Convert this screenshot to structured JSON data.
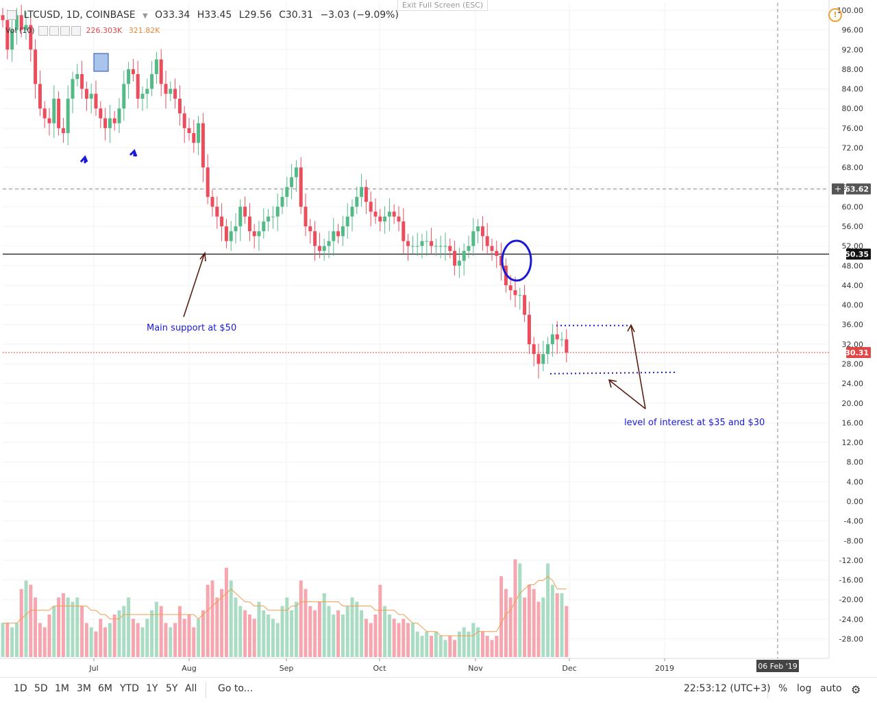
{
  "header": {
    "symbol": "LTCUSD, 1D, COINBASE",
    "open": "O33.34",
    "high": "H33.45",
    "low": "L29.56",
    "close": "C30.31",
    "change": "−3.03 (−9.09%)",
    "volume_label": "Vol (10)",
    "volume_value": "226.303K",
    "volume_ma": "321.82K"
  },
  "exit_fullscreen": "Exit Full Screen (ESC)",
  "warning_icon": "!",
  "annotations": {
    "main_support": "Main support at $50",
    "level_interest": "level of interest at $35 and $30"
  },
  "price_badges": {
    "top_line": "63.62",
    "support_line": "50.35",
    "last_price": "30.31"
  },
  "date_badge": "06 Feb '19",
  "x_axis_labels": [
    "Jul",
    "Aug",
    "Sep",
    "Oct",
    "Nov",
    "Dec",
    "2019"
  ],
  "timeframes": [
    "1D",
    "5D",
    "1M",
    "3M",
    "6M",
    "YTD",
    "1Y",
    "5Y",
    "All"
  ],
  "goto_label": "Go to...",
  "clock": "22:53:12 (UTC+3)",
  "right_buttons": [
    "%",
    "log",
    "auto"
  ],
  "colors": {
    "up": "#53b987",
    "down": "#eb4d5c",
    "up_vol": "#a9dcc3",
    "down_vol": "#f5a6ae",
    "ma": "#f39c4c",
    "annotation_blue": "#1a1ad6",
    "arrow_brown": "#5a1d10"
  },
  "chart_data": {
    "type": "candlestick",
    "title": "LTCUSD, 1D, COINBASE",
    "ylim": [
      -30,
      101
    ],
    "y_ticks": [
      100,
      96,
      92,
      88,
      84,
      80,
      76,
      72,
      68,
      64,
      60,
      56,
      52,
      48,
      44,
      40,
      36,
      32,
      28,
      24,
      20,
      16,
      12,
      8,
      4,
      0,
      -4,
      -8,
      -12,
      -16,
      -20,
      -24,
      -28
    ],
    "support_level": 50.35,
    "resistance_dashed": 63.62,
    "last_price": 30.31,
    "range_high": 35.8,
    "range_low": 26,
    "closes": [
      98,
      92,
      96,
      99,
      96,
      97,
      92,
      85,
      80,
      78,
      77,
      82,
      76,
      75,
      82,
      86,
      87,
      84,
      82,
      83,
      80,
      78,
      76,
      78,
      77,
      80,
      85,
      88,
      87,
      82,
      83,
      84,
      87,
      90,
      85,
      83,
      84,
      82,
      79,
      76,
      75,
      73,
      77,
      68,
      62,
      60,
      58,
      56,
      53,
      55,
      56,
      60,
      58,
      55,
      54,
      55,
      57,
      58,
      58,
      60,
      62,
      64,
      66,
      68,
      60,
      56,
      55,
      52,
      51,
      52,
      53,
      55,
      54,
      56,
      58,
      60,
      62,
      64,
      61,
      59,
      58,
      57,
      58,
      59,
      58,
      57,
      53,
      52,
      52,
      52,
      53,
      53,
      52,
      52,
      52,
      52,
      51,
      48,
      49,
      51,
      52,
      55,
      56,
      54,
      52,
      51,
      50,
      48,
      44,
      43,
      42,
      42,
      38,
      32,
      30,
      28,
      30,
      32,
      34,
      33,
      33,
      30.31
    ],
    "volume": [
      8,
      8,
      7,
      8,
      16,
      18,
      17,
      14,
      8,
      7,
      10,
      12,
      14,
      15,
      14,
      13,
      14,
      12,
      8,
      7,
      6,
      9,
      7,
      8,
      10,
      11,
      12,
      14,
      9,
      8,
      7,
      9,
      11,
      13,
      12,
      8,
      7,
      8,
      12,
      9,
      10,
      7,
      9,
      11,
      17,
      18,
      14,
      16,
      21,
      18,
      14,
      12,
      11,
      10,
      9,
      13,
      11,
      10,
      9,
      8,
      12,
      14,
      11,
      13,
      18,
      16,
      12,
      11,
      13,
      15,
      12,
      10,
      11,
      10,
      12,
      14,
      13,
      11,
      9,
      8,
      10,
      17,
      12,
      10,
      9,
      8,
      9,
      8,
      8,
      6,
      5,
      6,
      5,
      6,
      5,
      4,
      5,
      4,
      6,
      7,
      6,
      8,
      7,
      6,
      5,
      4,
      5,
      19,
      16,
      14,
      23,
      22,
      14,
      17,
      16,
      13,
      14,
      22,
      17,
      15,
      15,
      12
    ],
    "volume_ma": [
      8,
      8,
      8,
      8,
      9,
      10,
      11,
      11,
      11,
      11,
      11,
      12,
      12,
      12,
      12,
      12,
      12,
      12,
      12,
      11,
      11,
      10,
      10,
      9,
      9,
      9,
      10,
      10,
      10,
      10,
      10,
      10,
      10,
      10,
      10,
      10,
      10,
      10,
      10,
      10,
      10,
      10,
      9,
      10,
      11,
      12,
      13,
      14,
      15,
      16,
      15,
      14,
      13,
      13,
      12,
      12,
      12,
      11,
      11,
      11,
      11,
      11,
      12,
      12,
      13,
      13,
      13,
      13,
      13,
      13,
      13,
      13,
      13,
      12,
      12,
      12,
      12,
      12,
      12,
      12,
      11,
      11,
      11,
      11,
      11,
      10,
      10,
      9,
      8,
      8,
      7,
      6,
      6,
      6,
      5,
      5,
      5,
      5,
      5,
      5,
      5,
      5,
      6,
      6,
      6,
      6,
      6,
      8,
      10,
      11,
      13,
      15,
      16,
      17,
      17,
      18,
      18,
      19,
      18,
      16,
      16,
      16
    ]
  }
}
